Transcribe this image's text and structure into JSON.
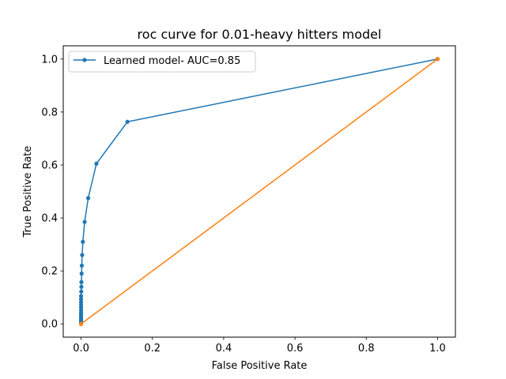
{
  "chart_data": {
    "type": "line",
    "title": "roc curve for 0.01-heavy hitters model",
    "xlabel": "False Positive Rate",
    "ylabel": "True Positive Rate",
    "xlim": [
      -0.05,
      1.05
    ],
    "ylim": [
      -0.05,
      1.05
    ],
    "xticks": [
      0.0,
      0.2,
      0.4,
      0.6,
      0.8,
      1.0
    ],
    "yticks": [
      0.0,
      0.2,
      0.4,
      0.6,
      0.8,
      1.0
    ],
    "xtick_labels": [
      "0.0",
      "0.2",
      "0.4",
      "0.6",
      "0.8",
      "1.0"
    ],
    "ytick_labels": [
      "0.0",
      "0.2",
      "0.4",
      "0.6",
      "0.8",
      "1.0"
    ],
    "grid": false,
    "legend_position": "top-left",
    "series": [
      {
        "name": "Learned model- AUC=0.85",
        "color": "#1f77b4",
        "marker": "circle",
        "points": [
          [
            0.0,
            0.0
          ],
          [
            0.0,
            0.005
          ],
          [
            0.0,
            0.01
          ],
          [
            0.0,
            0.015
          ],
          [
            0.0,
            0.02
          ],
          [
            0.0,
            0.027
          ],
          [
            0.0,
            0.035
          ],
          [
            0.0,
            0.043
          ],
          [
            0.0,
            0.052
          ],
          [
            0.0,
            0.062
          ],
          [
            0.0,
            0.072
          ],
          [
            0.0,
            0.082
          ],
          [
            0.0,
            0.093
          ],
          [
            0.0,
            0.105
          ],
          [
            0.0005,
            0.122
          ],
          [
            0.0008,
            0.14
          ],
          [
            0.001,
            0.158
          ],
          [
            0.0015,
            0.19
          ],
          [
            0.002,
            0.22
          ],
          [
            0.003,
            0.26
          ],
          [
            0.005,
            0.31
          ],
          [
            0.01,
            0.385
          ],
          [
            0.02,
            0.475
          ],
          [
            0.043,
            0.605
          ],
          [
            0.13,
            0.763
          ],
          [
            1.0,
            1.0
          ]
        ]
      },
      {
        "name": "",
        "color": "#ff7f0e",
        "marker": "circle",
        "points": [
          [
            0.0,
            0.0
          ],
          [
            1.0,
            1.0
          ]
        ]
      }
    ]
  }
}
